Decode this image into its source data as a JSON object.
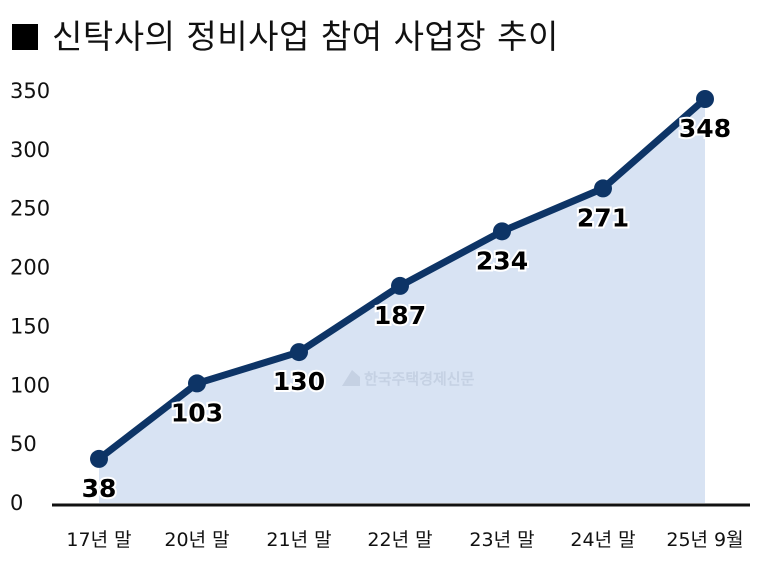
{
  "title": "신탁사의 정비사업 참여 사업장 추이",
  "watermark": "한국주택경제신문",
  "colors": {
    "line": "#0d3466",
    "area": "#d8e3f3",
    "axis": "#111111"
  },
  "chart_data": {
    "type": "area",
    "title": "신탁사의 정비사업 참여 사업장 추이",
    "categories": [
      "17년 말",
      "20년 말",
      "21년 말",
      "22년 말",
      "23년 말",
      "24년 말",
      "25년 9월"
    ],
    "values": [
      38,
      103,
      130,
      187,
      234,
      271,
      348
    ],
    "data_labels": [
      "38",
      "103",
      "130",
      "187",
      "234",
      "271",
      "348"
    ],
    "xlabel": "",
    "ylabel": "",
    "ylim": [
      0,
      350
    ],
    "yticks": [
      0,
      50,
      100,
      150,
      200,
      250,
      300,
      350
    ],
    "grid": false,
    "legend": null
  }
}
